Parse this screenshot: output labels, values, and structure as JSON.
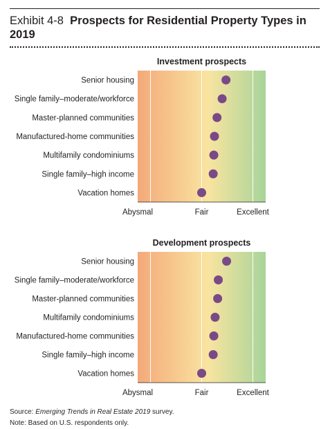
{
  "exhibit": {
    "label": "Exhibit 4-8",
    "title": "Prospects for Residential Property Types in 2019"
  },
  "colors": {
    "gradient_left": "#f4a97a",
    "gradient_mid": "#f9e4a0",
    "gradient_right": "#a8d49a",
    "marker": "#7a4a86",
    "gridline": "#ffffff"
  },
  "chart_data": [
    {
      "type": "scatter",
      "title": "Investment prospects",
      "scale_labels": [
        "Abysmal",
        "Fair",
        "Excellent"
      ],
      "xlim": [
        0,
        10
      ],
      "scale_positions": [
        1,
        5,
        9
      ],
      "grid": true,
      "background": "gradient",
      "categories": [
        "Senior housing",
        "Single family–moderate/workforce",
        "Master-planned communities",
        "Manufactured-home communities",
        "Multifamily condominiums",
        "Single family–high income",
        "Vacation homes"
      ],
      "values": [
        6.9,
        6.6,
        6.2,
        6.0,
        5.95,
        5.9,
        5.0
      ]
    },
    {
      "type": "scatter",
      "title": "Development prospects",
      "scale_labels": [
        "Abysmal",
        "Fair",
        "Excellent"
      ],
      "xlim": [
        0,
        10
      ],
      "scale_positions": [
        1,
        5,
        9
      ],
      "grid": true,
      "background": "gradient",
      "categories": [
        "Senior housing",
        "Single family–moderate/workforce",
        "Master-planned communities",
        "Multifamily condominiums",
        "Manufactured-home communities",
        "Single family–high income",
        "Vacation homes"
      ],
      "values": [
        6.95,
        6.3,
        6.25,
        6.05,
        5.95,
        5.9,
        5.0
      ]
    }
  ],
  "footnotes": {
    "source_prefix": "Source: ",
    "source_title": "Emerging Trends in Real Estate 2019",
    "source_suffix": " survey.",
    "note": "Note: Based on U.S. respondents only."
  }
}
